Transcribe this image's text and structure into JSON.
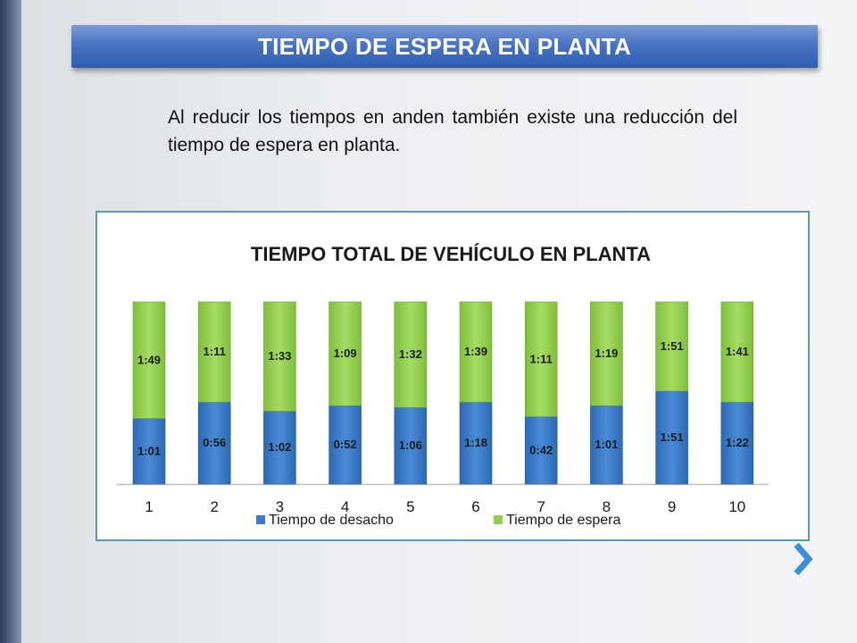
{
  "page": {
    "title": "TIEMPO DE ESPERA EN PLANTA",
    "intro": "Al reducir los tiempos en anden también existe una reducción del tiempo de espera en planta."
  },
  "icons": {
    "next": "chevron-right-icon"
  },
  "colors": {
    "accent": "#2f5cb0",
    "series_blue": "#3a7cc9",
    "series_green": "#92d050",
    "frame": "#5a9bb2",
    "next_chevron": "#3b8fd6"
  },
  "chart_data": {
    "type": "bar",
    "stacked": true,
    "title": "TIEMPO TOTAL DE VEHÍCULO EN PLANTA",
    "categories": [
      "1",
      "2",
      "3",
      "4",
      "5",
      "6",
      "7",
      "8",
      "9",
      "10"
    ],
    "series": [
      {
        "name": "Tiempo de desacho",
        "color": "#3a7cc9",
        "labels": [
          "1:01",
          "0:56",
          "1:02",
          "0:52",
          "1:06",
          "1:18",
          "0:42",
          "1:01",
          "1:51",
          "1:22"
        ],
        "fractions": [
          0.36,
          0.45,
          0.4,
          0.43,
          0.42,
          0.45,
          0.37,
          0.43,
          0.51,
          0.45
        ]
      },
      {
        "name": "Tiempo de espera",
        "color": "#92d050",
        "labels": [
          "1:49",
          "1:11",
          "1:33",
          "1:09",
          "1:32",
          "1:39",
          "1:11",
          "1:19",
          "1:51",
          "1:41"
        ],
        "fractions": [
          0.64,
          0.55,
          0.6,
          0.57,
          0.58,
          0.55,
          0.63,
          0.57,
          0.49,
          0.55
        ]
      }
    ],
    "ylim": [
      0,
      1
    ],
    "grid": false,
    "legend": "bottom"
  }
}
